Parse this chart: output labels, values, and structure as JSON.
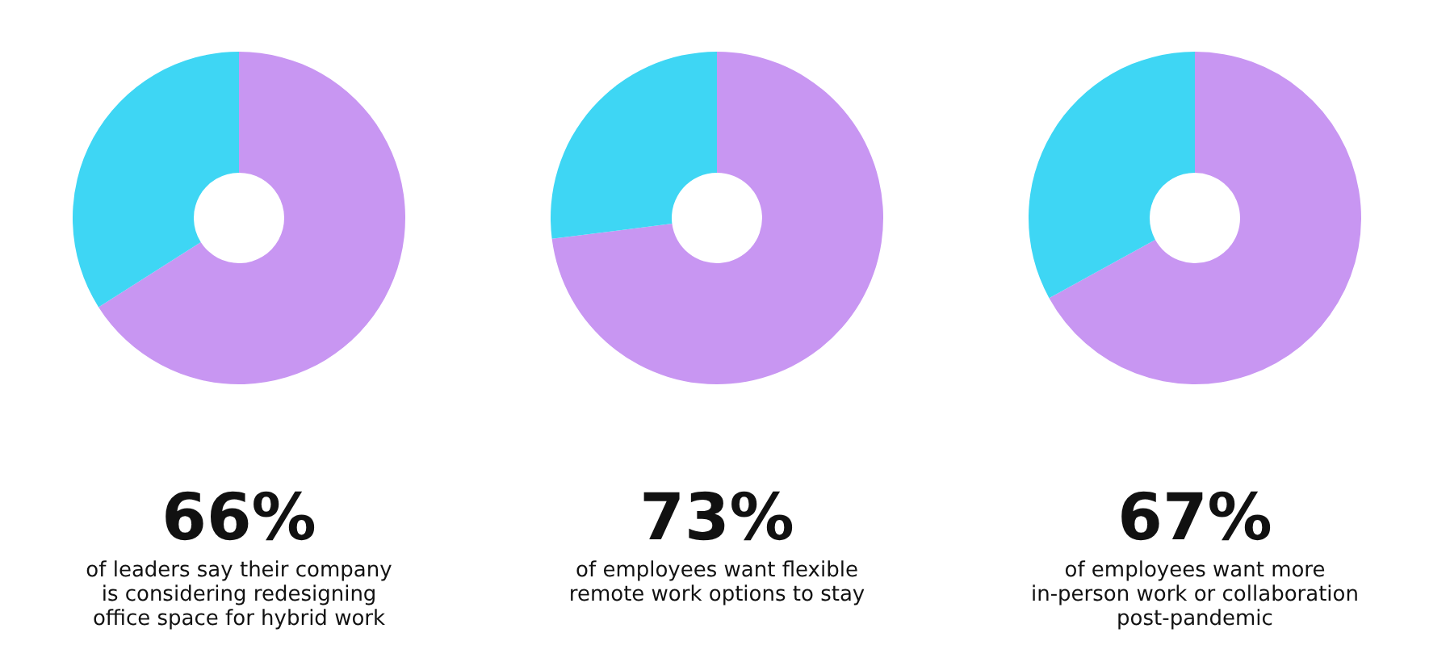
{
  "chart_data": [
    {
      "type": "donut",
      "title": "66%",
      "subtitle": "of leaders say their company\nis considering redesigning\noffice space for hybrid work",
      "categories": [
        null,
        null
      ],
      "values": [
        66,
        34
      ],
      "colors": [
        "#c896f2",
        "#3ed6f4"
      ]
    },
    {
      "type": "donut",
      "title": "73%",
      "subtitle": "of employees want flexible\nremote work options to stay",
      "categories": [
        null,
        null
      ],
      "values": [
        73,
        27
      ],
      "colors": [
        "#c896f2",
        "#3ed6f4"
      ]
    },
    {
      "type": "donut",
      "title": "67%",
      "subtitle": "of employees want more\nin-person work or collaboration\npost-pandemic",
      "categories": [
        null,
        null
      ],
      "values": [
        67,
        33
      ],
      "colors": [
        "#c896f2",
        "#3ed6f4"
      ]
    }
  ]
}
